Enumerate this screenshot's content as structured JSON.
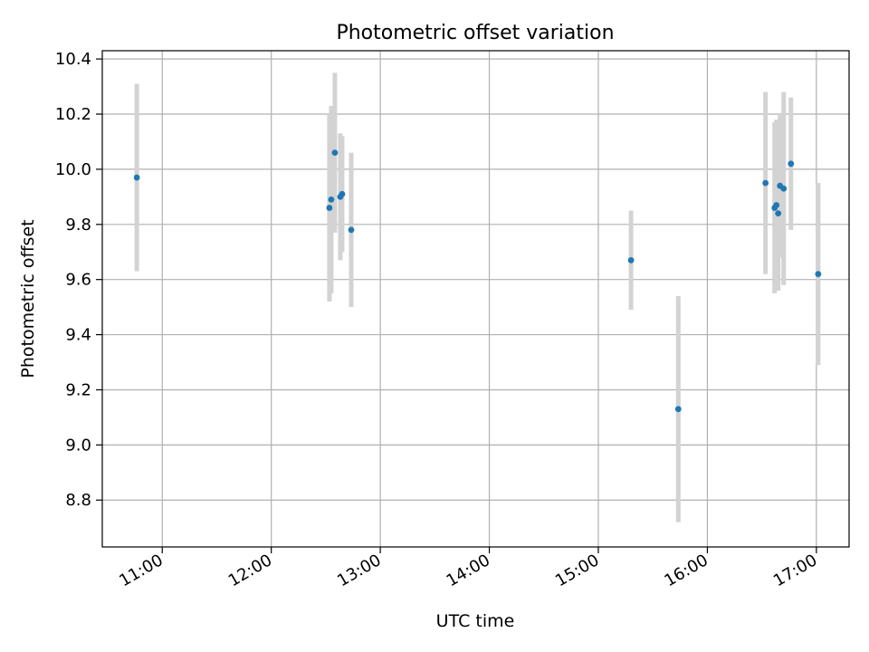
{
  "chart_data": {
    "type": "scatter",
    "title": "Photometric offset variation",
    "xlabel": "UTC time",
    "ylabel": "Photometric offset",
    "x_range": [
      "10:27",
      "17:18"
    ],
    "ylim": [
      8.63,
      10.43
    ],
    "x_ticks": [
      "11:00",
      "12:00",
      "13:00",
      "14:00",
      "15:00",
      "16:00",
      "17:00"
    ],
    "y_ticks": [
      "8.8",
      "9.0",
      "9.2",
      "9.4",
      "9.6",
      "9.8",
      "10.0",
      "10.2",
      "10.4"
    ],
    "grid": true,
    "colors": {
      "point": "#1f77b4",
      "errorbar": "#d3d3d3",
      "grid": "#b0b0b0"
    },
    "points": [
      {
        "x": "10:46",
        "y": 9.97,
        "err": 0.34
      },
      {
        "x": "12:32",
        "y": 9.86,
        "err": 0.34
      },
      {
        "x": "12:33",
        "y": 9.89,
        "err": 0.34
      },
      {
        "x": "12:35",
        "y": 10.06,
        "err": 0.29
      },
      {
        "x": "12:38",
        "y": 9.9,
        "err": 0.23
      },
      {
        "x": "12:39",
        "y": 9.91,
        "err": 0.21
      },
      {
        "x": "12:44",
        "y": 9.78,
        "err": 0.28
      },
      {
        "x": "15:18",
        "y": 9.67,
        "err": 0.18
      },
      {
        "x": "15:44",
        "y": 9.13,
        "err": 0.41
      },
      {
        "x": "16:32",
        "y": 9.95,
        "err": 0.33
      },
      {
        "x": "16:37",
        "y": 9.86,
        "err": 0.31
      },
      {
        "x": "16:38",
        "y": 9.87,
        "err": 0.31
      },
      {
        "x": "16:39",
        "y": 9.84,
        "err": 0.28
      },
      {
        "x": "16:40",
        "y": 9.94,
        "err": 0.26
      },
      {
        "x": "16:42",
        "y": 9.93,
        "err": 0.35
      },
      {
        "x": "16:46",
        "y": 10.02,
        "err": 0.24
      },
      {
        "x": "17:01",
        "y": 9.62,
        "err": 0.33
      }
    ]
  }
}
